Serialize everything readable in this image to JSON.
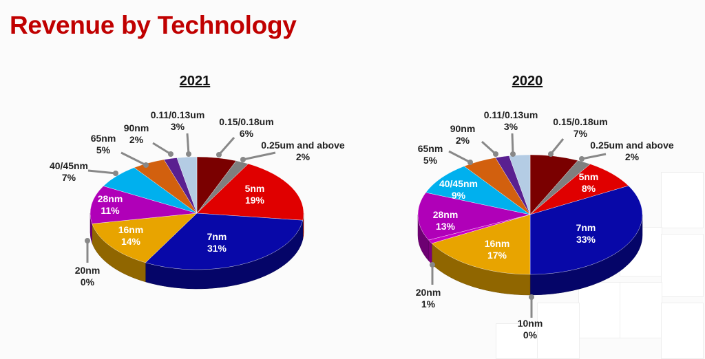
{
  "title": "Revenue by Technology",
  "chart_data": [
    {
      "type": "pie",
      "title": "2021",
      "style": "3d",
      "categories": [
        "0.15/0.18um",
        "0.25um and above",
        "5nm",
        "7nm",
        "16nm",
        "20nm",
        "28nm",
        "40/45nm",
        "65nm",
        "90nm",
        "0.11/0.13um"
      ],
      "values": [
        6,
        2,
        19,
        31,
        14,
        0,
        11,
        7,
        5,
        2,
        3
      ],
      "labels": [
        "6%",
        "2%",
        "19%",
        "31%",
        "14%",
        "0%",
        "11%",
        "7%",
        "5%",
        "2%",
        "3%"
      ],
      "colors": [
        "#7a0000",
        "#7f7f7f",
        "#e00000",
        "#0808a8",
        "#e8a400",
        "#9a9a9a",
        "#b000b8",
        "#00b0ee",
        "#d2600e",
        "#5a2090",
        "#b4cce4"
      ]
    },
    {
      "type": "pie",
      "title": "2020",
      "style": "3d",
      "categories": [
        "0.15/0.18um",
        "0.25um and above",
        "5nm",
        "7nm",
        "10nm",
        "16nm",
        "20nm",
        "28nm",
        "40/45nm",
        "65nm",
        "90nm",
        "0.11/0.13um"
      ],
      "values": [
        7,
        2,
        8,
        33,
        0,
        17,
        1,
        13,
        9,
        5,
        2,
        3
      ],
      "labels": [
        "7%",
        "2%",
        "8%",
        "33%",
        "0%",
        "17%",
        "1%",
        "13%",
        "9%",
        "5%",
        "2%",
        "3%"
      ],
      "colors": [
        "#7a0000",
        "#7f7f7f",
        "#e00000",
        "#0808a8",
        "#444444",
        "#e8a400",
        "#c800c8",
        "#b000b8",
        "#00b0ee",
        "#d2600e",
        "#5a2090",
        "#b4cce4"
      ]
    }
  ]
}
